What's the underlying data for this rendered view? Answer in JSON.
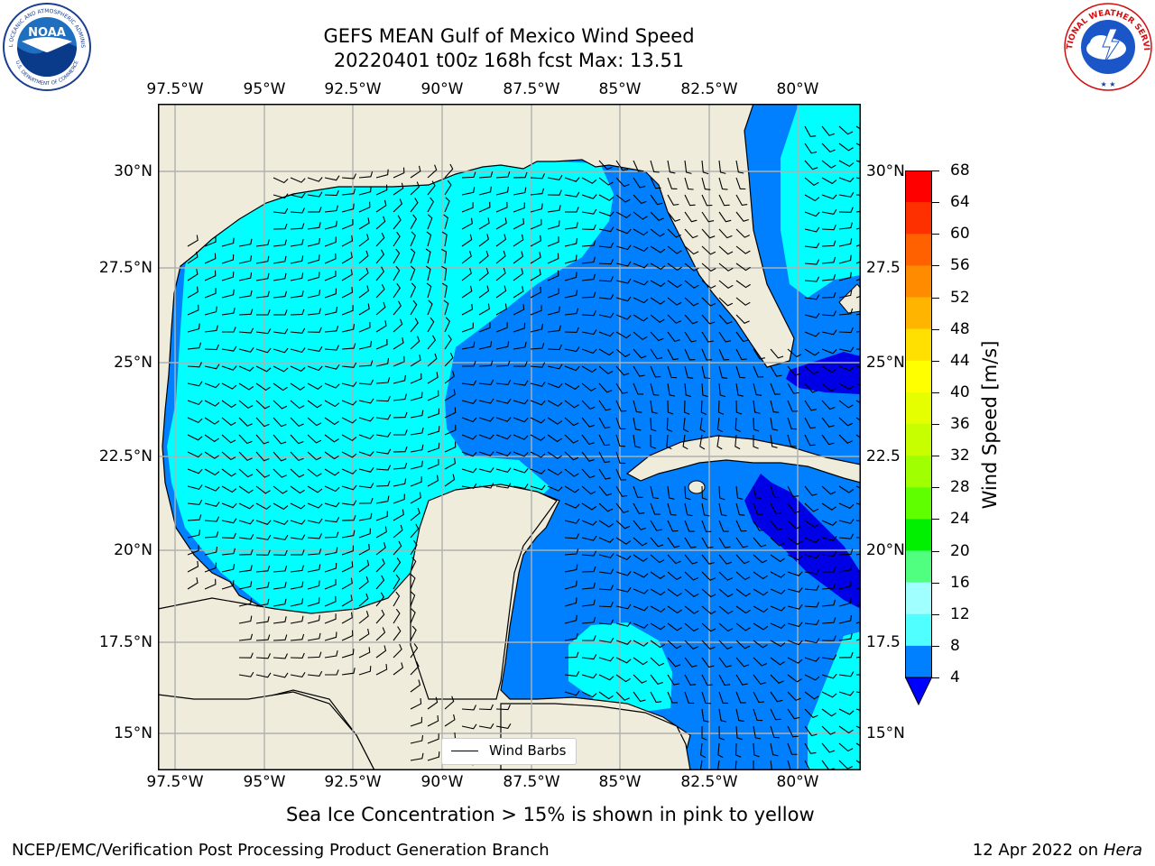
{
  "title": {
    "line1": "GEFS MEAN Gulf of Mexico Wind Speed",
    "line2": "20220401 t00z 168h fcst   Max: 13.51"
  },
  "map": {
    "lon_labels": [
      "97.5°W",
      "95°W",
      "92.5°W",
      "90°W",
      "87.5°W",
      "85°W",
      "82.5°W",
      "80°W"
    ],
    "lat_labels": [
      "30°N",
      "27.5°N",
      "25°N",
      "22.5°N",
      "20°N",
      "17.5°N",
      "15°N"
    ],
    "lat_labels_right": [
      "30°N",
      "27.5",
      "25°N",
      "22.5",
      "20°N",
      "17.5",
      "15°N"
    ],
    "legend_label": "Wind Barbs",
    "colors": {
      "land": "#efecdb",
      "band_4_8": "#0080ff",
      "band_8_12": "#00ffff",
      "band_below_4": "#0000e6",
      "grid": "#b0b0b0"
    }
  },
  "colorbar": {
    "label": "Wind Speed [m/s]",
    "ticks": [
      "68",
      "64",
      "60",
      "56",
      "52",
      "48",
      "44",
      "40",
      "36",
      "32",
      "28",
      "24",
      "20",
      "16",
      "12",
      "8",
      "4"
    ],
    "colors": [
      "#ff0000",
      "#ff3000",
      "#ff6000",
      "#ff8c00",
      "#ffb400",
      "#ffe000",
      "#ffff00",
      "#e6ff00",
      "#c8ff00",
      "#a0ff00",
      "#60ff00",
      "#00f000",
      "#50ff80",
      "#a0ffff",
      "#50ffff",
      "#00ffff",
      "#0080ff"
    ],
    "extend_color": "#0000ff"
  },
  "subtitle": "Sea Ice Concentration > 15% is shown in pink to yellow",
  "footer": {
    "left": "NCEP/EMC/Verification Post Processing Product Generation Branch",
    "date": "12 Apr 2022 on ",
    "machine": "Hera"
  },
  "logos": {
    "noaa_text": "NOAA",
    "noaa_ring_top": "NATIONAL OCEANIC AND ATMOSPHERIC ADMINISTRATION",
    "noaa_ring_bottom": "U.S. DEPARTMENT OF COMMERCE",
    "nws_ring": "NATIONAL WEATHER SERVICE"
  }
}
